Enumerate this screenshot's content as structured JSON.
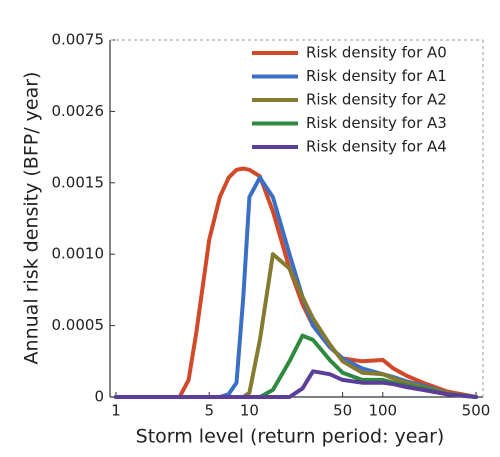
{
  "chart_data": {
    "type": "line",
    "xlabel": "Storm level (return period: year)",
    "ylabel": "Annual risk density (BFP/ year)",
    "xscale": "log",
    "x": [
      1,
      2,
      3,
      3.5,
      4,
      5,
      6,
      7,
      8,
      9,
      10,
      12,
      15,
      20,
      25,
      30,
      40,
      50,
      70,
      100,
      120,
      150,
      200,
      300,
      500
    ],
    "series": [
      {
        "name": "Risk density for A0",
        "color": "#d2492a",
        "values": [
          0,
          0,
          0,
          0.00012,
          0.00045,
          0.0011,
          0.0014,
          0.00158,
          0.0017,
          0.00172,
          0.0017,
          0.0016,
          0.0013,
          0.0009,
          0.00065,
          0.0005,
          0.00035,
          0.00027,
          0.00025,
          0.00026,
          0.0002,
          0.00015,
          0.0001,
          4e-05,
          0
        ]
      },
      {
        "name": "Risk density for A1",
        "color": "#3b6fc4",
        "values": [
          0,
          0,
          0,
          0,
          0,
          0,
          0,
          2e-05,
          0.0001,
          0.0007,
          0.0014,
          0.00158,
          0.0014,
          0.001,
          0.0007,
          0.0005,
          0.00035,
          0.00027,
          0.0002,
          0.00016,
          0.00014,
          0.00011,
          8e-05,
          3e-05,
          0
        ]
      },
      {
        "name": "Risk density for A2",
        "color": "#867a30",
        "values": [
          0,
          0,
          0,
          0,
          0,
          0,
          0,
          0,
          0,
          0,
          3e-05,
          0.0004,
          0.001,
          0.0009,
          0.0007,
          0.00055,
          0.00037,
          0.00025,
          0.00017,
          0.00016,
          0.00013,
          0.0001,
          7e-05,
          3e-05,
          0
        ]
      },
      {
        "name": "Risk density for A3",
        "color": "#2e8a3e",
        "values": [
          0,
          0,
          0,
          0,
          0,
          0,
          0,
          0,
          0,
          0,
          0,
          0,
          5e-05,
          0.00025,
          0.00043,
          0.0004,
          0.00026,
          0.00017,
          0.00012,
          0.00012,
          0.0001,
          8e-05,
          6e-05,
          2e-05,
          0
        ]
      },
      {
        "name": "Risk density for A4",
        "color": "#5a3e9a",
        "values": [
          0,
          0,
          0,
          0,
          0,
          0,
          0,
          0,
          0,
          0,
          0,
          0,
          0,
          0,
          6e-05,
          0.00018,
          0.00016,
          0.00012,
          0.0001,
          0.0001,
          9e-05,
          7e-05,
          5e-05,
          2e-05,
          0
        ]
      }
    ],
    "xlim": [
      1,
      500
    ],
    "xticks": [
      1,
      5,
      10,
      50,
      100,
      500
    ],
    "ylim": [
      0,
      0.0075
    ],
    "yticks": [
      0,
      0.0005,
      {
        "value": 0.001,
        "label": "0.0010"
      },
      0.0015,
      0.0026,
      0.0075
    ],
    "legend": "upper right"
  }
}
